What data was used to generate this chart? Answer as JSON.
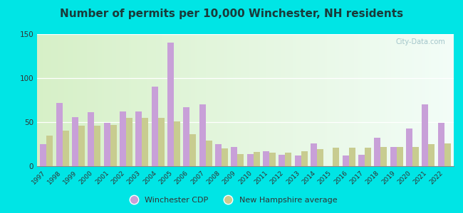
{
  "title": "Number of permits per 10,000 Winchester, NH residents",
  "years": [
    1997,
    1998,
    1999,
    2000,
    2001,
    2002,
    2003,
    2004,
    2005,
    2006,
    2007,
    2008,
    2009,
    2010,
    2011,
    2012,
    2013,
    2014,
    2015,
    2016,
    2017,
    2018,
    2019,
    2020,
    2021,
    2022
  ],
  "winchester": [
    25,
    72,
    56,
    61,
    49,
    62,
    62,
    90,
    140,
    67,
    70,
    25,
    22,
    14,
    17,
    13,
    12,
    26,
    0,
    12,
    13,
    32,
    22,
    43,
    70,
    49
  ],
  "nh_avg": [
    35,
    40,
    46,
    46,
    47,
    55,
    55,
    55,
    51,
    36,
    29,
    20,
    14,
    16,
    15,
    15,
    17,
    19,
    21,
    21,
    21,
    22,
    22,
    22,
    25,
    26
  ],
  "winchester_color": "#c8a0d8",
  "nh_avg_color": "#c8cc90",
  "background_outer": "#00e5e5",
  "ylim": [
    0,
    150
  ],
  "yticks": [
    0,
    50,
    100,
    150
  ],
  "title_fontsize": 11,
  "title_color": "#1a3a3a",
  "watermark": "City-Data.com",
  "legend_winchester": "Winchester CDP",
  "legend_nh": "New Hampshire average"
}
